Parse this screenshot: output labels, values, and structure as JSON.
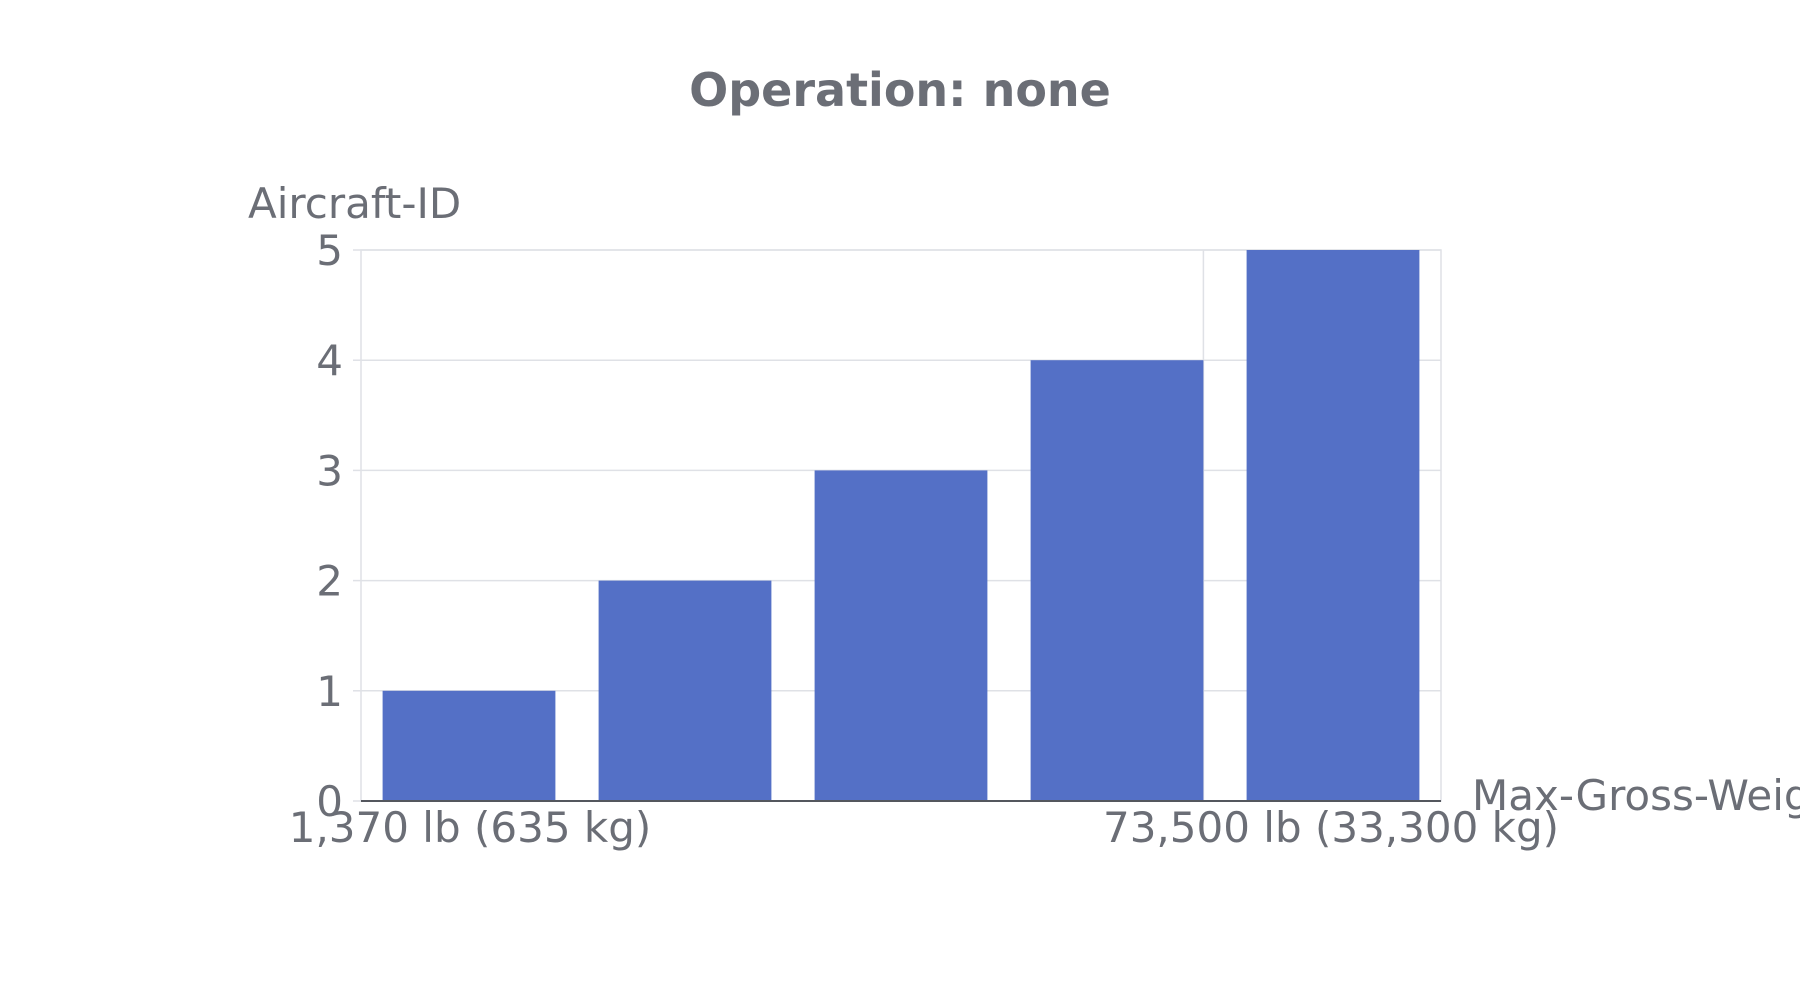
{
  "chart_data": {
    "type": "bar",
    "title": "Operation: none",
    "xlabel": "Max-Gross-Weight",
    "ylabel": "Aircraft-ID",
    "categories": [
      "1,370 lb (635 kg)",
      "",
      "",
      "",
      "73,500 lb (33,300 kg)"
    ],
    "x_tick_labels": [
      "1,370 lb (635 kg)",
      "73,500 lb (33,300 kg)"
    ],
    "values": [
      1,
      2,
      3,
      4,
      5
    ],
    "y_ticks": [
      "0",
      "1",
      "2",
      "3",
      "4",
      "5"
    ],
    "ylim": [
      0,
      5
    ],
    "grid": true,
    "legend": "none"
  },
  "colors": {
    "bar": "#5470c6",
    "text": "#6b6e76",
    "grid": "#dfe1e6",
    "axis": "#54575e"
  }
}
